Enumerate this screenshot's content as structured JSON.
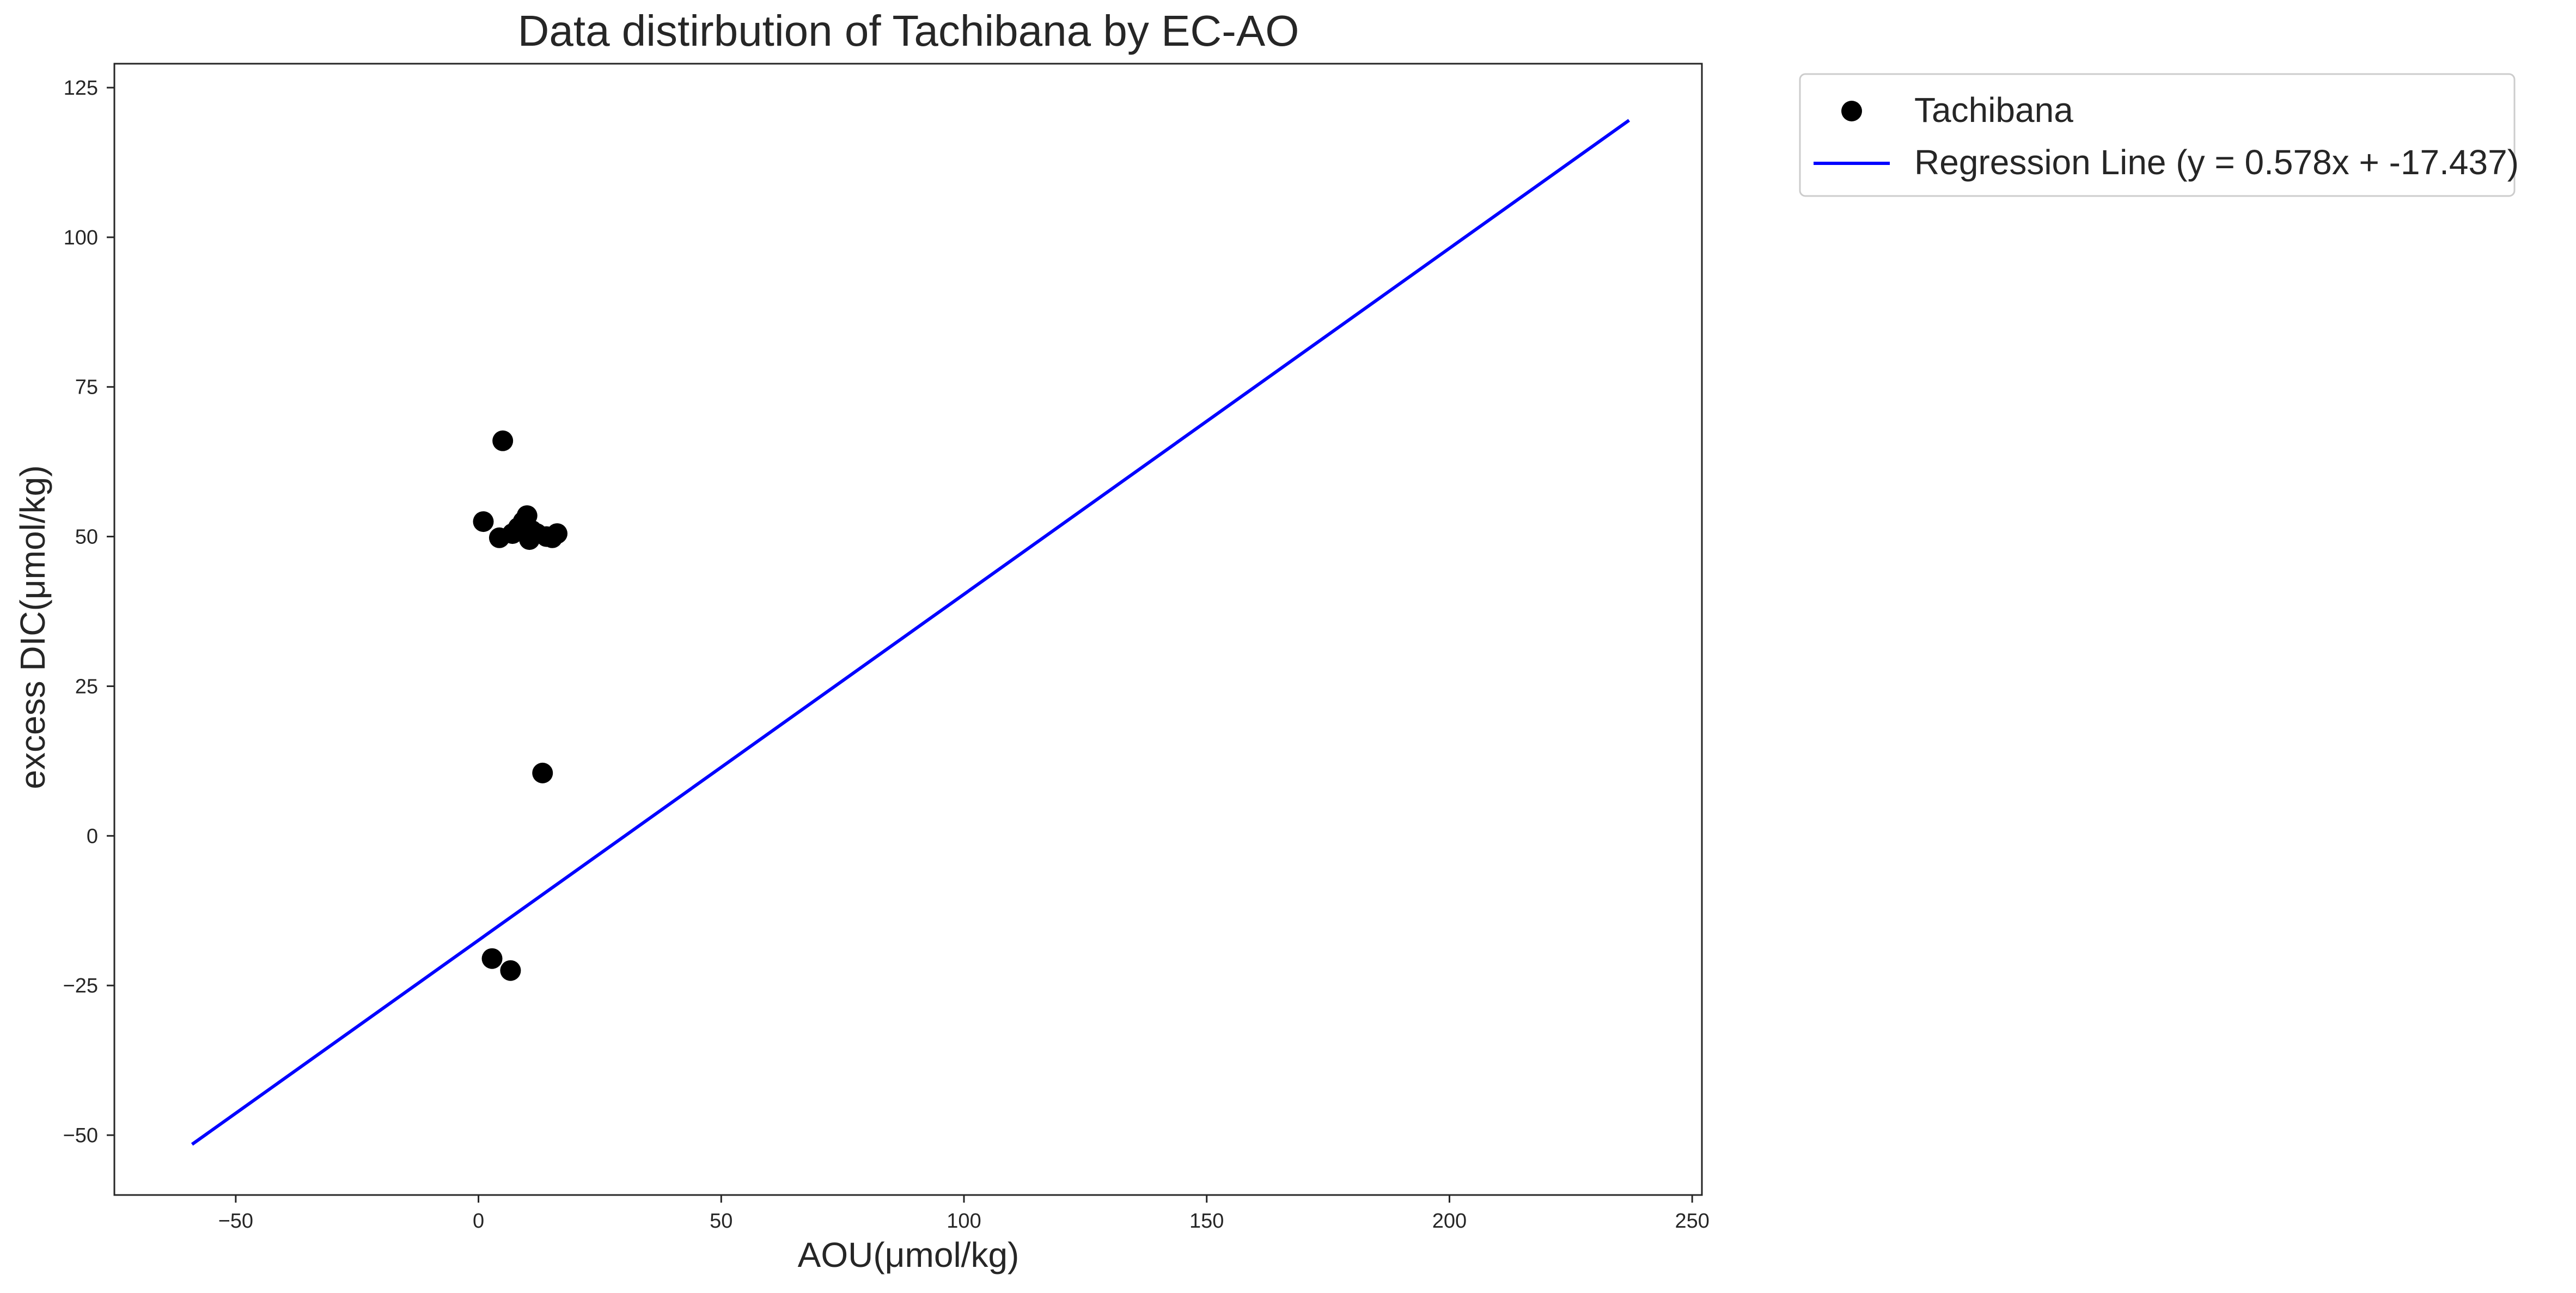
{
  "chart_data": {
    "type": "scatter",
    "title": "Data distirbution of Tachibana by EC-AO",
    "xlabel": "AOU(μmol/kg)",
    "ylabel": "excess DIC(μmol/kg)",
    "xlim": [
      -75,
      252
    ],
    "ylim": [
      -60,
      129
    ],
    "xticks": [
      -50,
      0,
      50,
      100,
      150,
      200,
      250
    ],
    "yticks": [
      -50,
      -25,
      0,
      25,
      50,
      75,
      100,
      125
    ],
    "xtick_labels": [
      "−50",
      "0",
      "50",
      "100",
      "150",
      "200",
      "250"
    ],
    "ytick_labels": [
      "−50",
      "−25",
      "0",
      "25",
      "50",
      "75",
      "100",
      "125"
    ],
    "grid": false,
    "legend_position": "outside top-right",
    "series": [
      {
        "name": "Tachibana",
        "kind": "scatter",
        "color": "#000000",
        "points": [
          {
            "x": 1.0,
            "y": 52.5
          },
          {
            "x": 2.8,
            "y": -20.5
          },
          {
            "x": 4.3,
            "y": 49.8
          },
          {
            "x": 5.0,
            "y": 66.0
          },
          {
            "x": 6.6,
            "y": -22.5
          },
          {
            "x": 7.0,
            "y": 50.5
          },
          {
            "x": 8.2,
            "y": 51.5
          },
          {
            "x": 9.2,
            "y": 52.5
          },
          {
            "x": 10.0,
            "y": 53.5
          },
          {
            "x": 10.5,
            "y": 49.5
          },
          {
            "x": 11.0,
            "y": 51.0
          },
          {
            "x": 12.0,
            "y": 50.5
          },
          {
            "x": 13.2,
            "y": 10.5
          },
          {
            "x": 14.0,
            "y": 50.0
          },
          {
            "x": 15.2,
            "y": 49.8
          },
          {
            "x": 16.2,
            "y": 50.5
          }
        ]
      },
      {
        "name": "Regression Line (y = 0.578x + -17.437)",
        "kind": "line",
        "color": "#0000ff",
        "slope": 0.578,
        "intercept": -17.437,
        "x_range": [
          -59,
          237
        ]
      }
    ]
  }
}
